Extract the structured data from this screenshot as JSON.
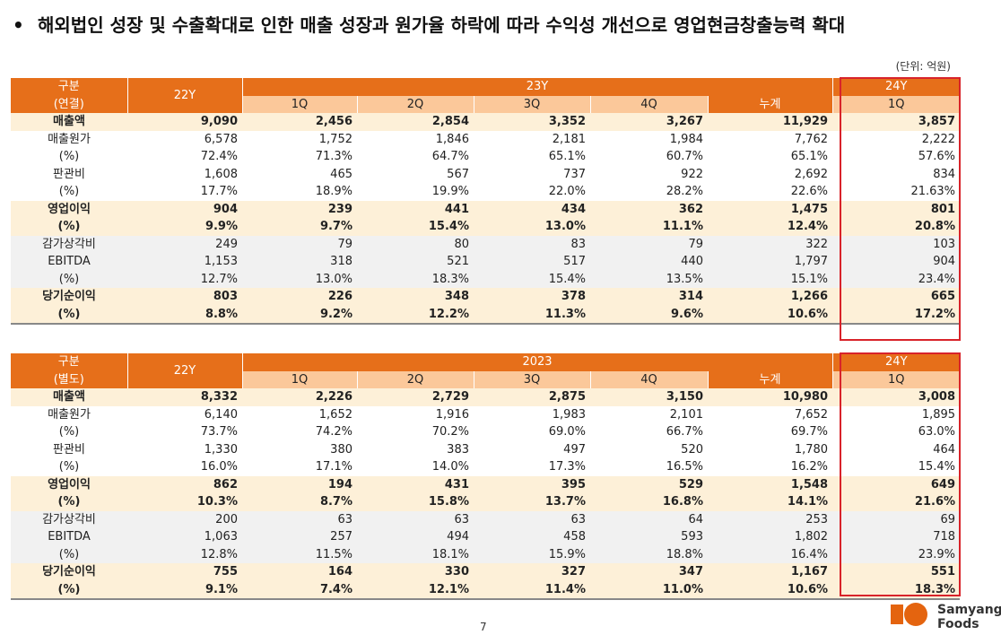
{
  "headline": "해외법인 성장 및 수출확대로 인한 매출 성장과 원가율 하락에 따라 수익성 개선으로 영업현금창출능력 확대",
  "bullet": "•",
  "unit": "(단위: 억원)",
  "page_number": "7",
  "logo": {
    "line1": "Samyang",
    "line2": "Foods",
    "primary_color": "#e4640f"
  },
  "colors": {
    "header": "#e66f1a",
    "subheader": "#fbc89a",
    "highlight_row": "#fdf0d8",
    "gray_row": "#f1f1f1",
    "highlight_box": "#d8232a"
  },
  "tables": [
    {
      "h_label1": "구분",
      "h_label2": "(연결)",
      "h_prev": "22Y",
      "h_group": "23Y",
      "h_next": "24Y",
      "quarters": [
        "1Q",
        "2Q",
        "3Q",
        "4Q"
      ],
      "h_cum": "누계",
      "h_next_q": "1Q",
      "rows": [
        {
          "label": "매출액",
          "c": [
            "9,090",
            "2,456",
            "2,854",
            "3,352",
            "3,267",
            "11,929",
            "3,857"
          ]
        },
        {
          "label": "매출원가",
          "c": [
            "6,578",
            "1,752",
            "1,846",
            "2,181",
            "1,984",
            "7,762",
            "2,222"
          ]
        },
        {
          "label": "(%)",
          "c": [
            "72.4%",
            "71.3%",
            "64.7%",
            "65.1%",
            "60.7%",
            "65.1%",
            "57.6%"
          ]
        },
        {
          "label": "판관비",
          "c": [
            "1,608",
            "465",
            "567",
            "737",
            "922",
            "2,692",
            "834"
          ]
        },
        {
          "label": "(%)",
          "c": [
            "17.7%",
            "18.9%",
            "19.9%",
            "22.0%",
            "28.2%",
            "22.6%",
            "21.63%"
          ]
        },
        {
          "label": "영업이익",
          "c": [
            "904",
            "239",
            "441",
            "434",
            "362",
            "1,475",
            "801"
          ]
        },
        {
          "label": "(%)",
          "c": [
            "9.9%",
            "9.7%",
            "15.4%",
            "13.0%",
            "11.1%",
            "12.4%",
            "20.8%"
          ]
        },
        {
          "label": "감가상각비",
          "c": [
            "249",
            "79",
            "80",
            "83",
            "79",
            "322",
            "103"
          ]
        },
        {
          "label": "EBITDA",
          "c": [
            "1,153",
            "318",
            "521",
            "517",
            "440",
            "1,797",
            "904"
          ]
        },
        {
          "label": "(%)",
          "c": [
            "12.7%",
            "13.0%",
            "18.3%",
            "15.4%",
            "13.5%",
            "15.1%",
            "23.4%"
          ]
        },
        {
          "label": "당기순이익",
          "c": [
            "803",
            "226",
            "348",
            "378",
            "314",
            "1,266",
            "665"
          ]
        },
        {
          "label": "(%)",
          "c": [
            "8.8%",
            "9.2%",
            "12.2%",
            "11.3%",
            "9.6%",
            "10.6%",
            "17.2%"
          ]
        }
      ]
    },
    {
      "h_label1": "구분",
      "h_label2": "(별도)",
      "h_prev": "22Y",
      "h_group": "2023",
      "h_next": "24Y",
      "quarters": [
        "1Q",
        "2Q",
        "3Q",
        "4Q"
      ],
      "h_cum": "누계",
      "h_next_q": "1Q",
      "rows": [
        {
          "label": "매출액",
          "c": [
            "8,332",
            "2,226",
            "2,729",
            "2,875",
            "3,150",
            "10,980",
            "3,008"
          ]
        },
        {
          "label": "매출원가",
          "c": [
            "6,140",
            "1,652",
            "1,916",
            "1,983",
            "2,101",
            "7,652",
            "1,895"
          ]
        },
        {
          "label": "(%)",
          "c": [
            "73.7%",
            "74.2%",
            "70.2%",
            "69.0%",
            "66.7%",
            "69.7%",
            "63.0%"
          ]
        },
        {
          "label": "판관비",
          "c": [
            "1,330",
            "380",
            "383",
            "497",
            "520",
            "1,780",
            "464"
          ]
        },
        {
          "label": "(%)",
          "c": [
            "16.0%",
            "17.1%",
            "14.0%",
            "17.3%",
            "16.5%",
            "16.2%",
            "15.4%"
          ]
        },
        {
          "label": "영업이익",
          "c": [
            "862",
            "194",
            "431",
            "395",
            "529",
            "1,548",
            "649"
          ]
        },
        {
          "label": "(%)",
          "c": [
            "10.3%",
            "8.7%",
            "15.8%",
            "13.7%",
            "16.8%",
            "14.1%",
            "21.6%"
          ]
        },
        {
          "label": "감가상각비",
          "c": [
            "200",
            "63",
            "63",
            "63",
            "64",
            "253",
            "69"
          ]
        },
        {
          "label": "EBITDA",
          "c": [
            "1,063",
            "257",
            "494",
            "458",
            "593",
            "1,802",
            "718"
          ]
        },
        {
          "label": "(%)",
          "c": [
            "12.8%",
            "11.5%",
            "18.1%",
            "15.9%",
            "18.8%",
            "16.4%",
            "23.9%"
          ]
        },
        {
          "label": "당기순이익",
          "c": [
            "755",
            "164",
            "330",
            "327",
            "347",
            "1,167",
            "551"
          ]
        },
        {
          "label": "(%)",
          "c": [
            "9.1%",
            "7.4%",
            "12.1%",
            "11.4%",
            "11.0%",
            "10.6%",
            "18.3%"
          ]
        }
      ]
    }
  ]
}
